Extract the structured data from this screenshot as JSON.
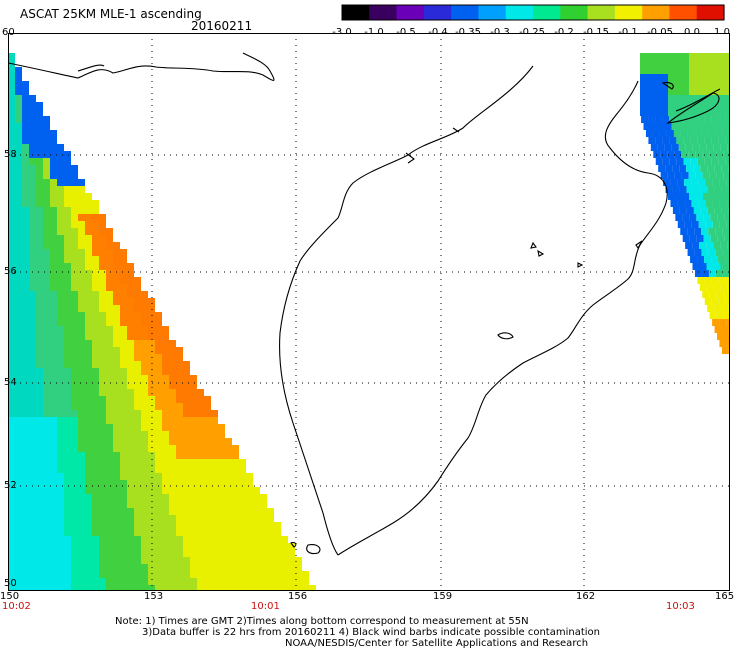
{
  "header": {
    "title": "ASCAT 25KM MLE-1 ascending",
    "date": "20160211"
  },
  "colorbar": {
    "labels": [
      "-3.0",
      "-1.0",
      "-0.5",
      "-0.4",
      "-0.35",
      "-0.3",
      "-0.25",
      "-0.2",
      "-0.15",
      "-0.1",
      "-0.05",
      "0.0",
      "1.0"
    ],
    "colors": [
      "#000000",
      "#3a0060",
      "#6a00b8",
      "#2a2ad8",
      "#0060f0",
      "#00a0ff",
      "#00e8e8",
      "#00e890",
      "#30d030",
      "#a8e020",
      "#f0f000",
      "#ffa000",
      "#ff5000",
      "#e01000"
    ]
  },
  "map": {
    "lat_ticks": [
      "60",
      "58",
      "56",
      "54",
      "52",
      "50"
    ],
    "lon_ticks": [
      "150",
      "153",
      "156",
      "159",
      "162",
      "165"
    ],
    "lat_range": [
      50,
      60
    ],
    "lon_range": [
      150,
      165
    ],
    "grid": true,
    "times": [
      "10:02",
      "10:01",
      "10:03"
    ]
  },
  "footer": {
    "note_line1": "Note: 1) Times are GMT 2)Times along bottom correspond to measurement at 55N",
    "note_line2": "3)Data buffer is 22 hrs from 20160211 4) Black wind barbs indicate possible contamination",
    "note_line3": "NOAA/NESDIS/Center for Satellite Applications and Research"
  }
}
